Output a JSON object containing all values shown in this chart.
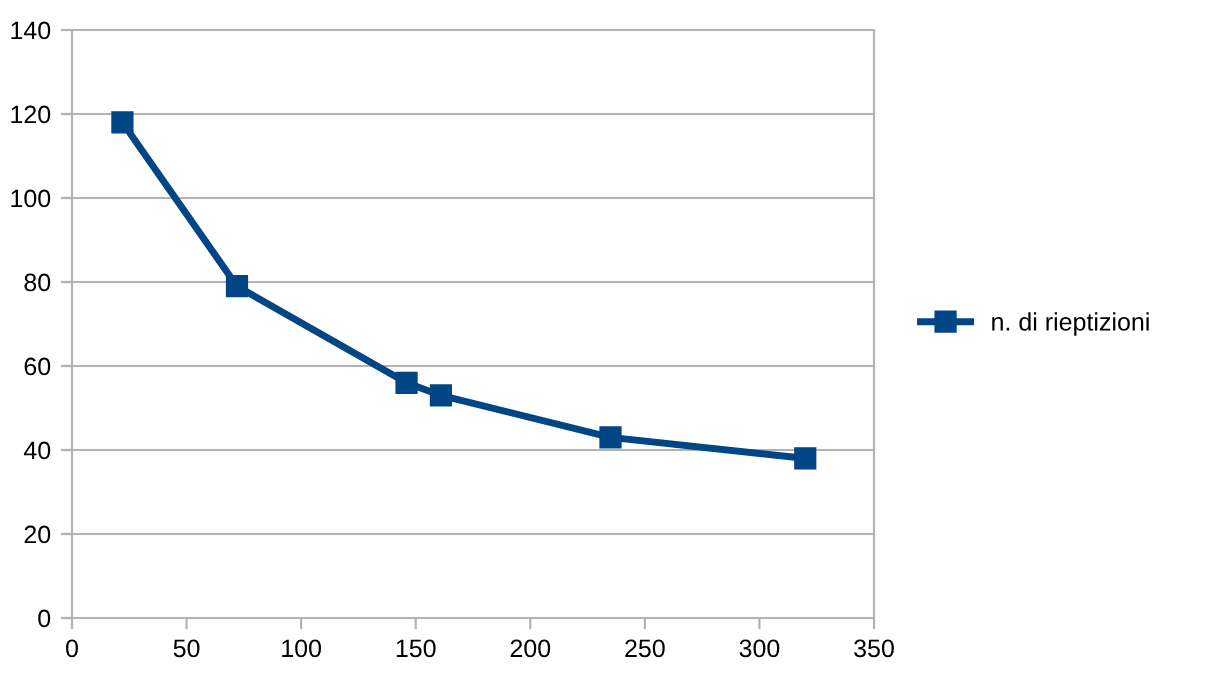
{
  "chart_data": {
    "type": "line",
    "x": [
      22,
      72,
      146,
      161,
      235,
      320
    ],
    "series": [
      {
        "name": "n. di rieptizioni",
        "color": "#004586",
        "values": [
          118,
          79,
          56,
          53,
          43,
          38
        ]
      }
    ],
    "xlim": [
      0,
      350
    ],
    "xticks": [
      0,
      50,
      100,
      150,
      200,
      250,
      300,
      350
    ],
    "ylim": [
      0,
      140
    ],
    "yticks": [
      0,
      20,
      40,
      60,
      80,
      100,
      120,
      140
    ],
    "grid": "y",
    "legend": "right",
    "marker": "square",
    "line_style": "solid"
  }
}
